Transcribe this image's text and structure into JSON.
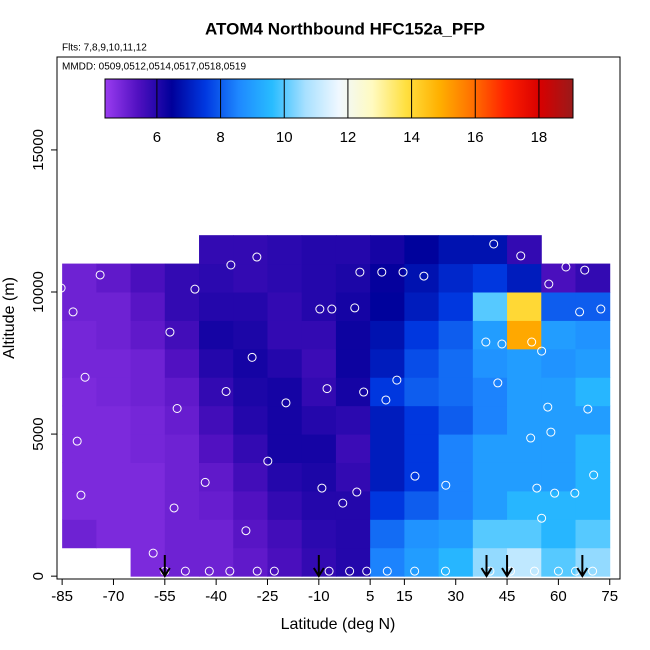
{
  "chart_data": {
    "type": "heatmap",
    "title": "ATOM4 Northbound HFC152a_PFP",
    "subtitle": [
      "Flts: 7,8,9,10,11,12",
      "MMDD: 0509,0512,0514,0517,0518,0519"
    ],
    "xlabel": "Latitude (deg N)",
    "ylabel": "Altitude (m)",
    "xlim": [
      -86.5,
      78
    ],
    "ylim": [
      -100,
      18270
    ],
    "xticks": [
      -85,
      -70,
      -55,
      -40,
      -25,
      -10,
      5,
      15,
      30,
      45,
      60,
      75
    ],
    "yticks": [
      0,
      5000,
      10000,
      15000
    ],
    "clim": [
      4.37,
      19.07
    ],
    "cticks": [
      6,
      8,
      10,
      12,
      14,
      16,
      18
    ],
    "colormap": [
      "#9a3cf0",
      "#5010c0",
      "#00009a",
      "#0038e0",
      "#1e88ff",
      "#28bcff",
      "#a8e0ff",
      "#f0f8ff",
      "#fffac0",
      "#ffe040",
      "#ffb000",
      "#ff7000",
      "#ff2000",
      "#d80000",
      "#9a1a1a"
    ],
    "lat_edges": [
      -85,
      -75,
      -65,
      -55,
      -45,
      -35,
      -25,
      -15,
      -5,
      5,
      15,
      25,
      35,
      45,
      55,
      65,
      75
    ],
    "alt_edges": [
      0,
      1000,
      2000,
      3000,
      4000,
      5000,
      6000,
      7000,
      8000,
      9000,
      10000,
      11000,
      12000
    ],
    "grid_values": [
      [
        null,
        5,
        4.8,
        4.8,
        4.8,
        4.8,
        4.8,
        4.9,
        4.9,
        5,
        5,
        null
      ],
      [
        null,
        4.8,
        4.8,
        4.8,
        4.8,
        4.8,
        4.9,
        4.9,
        5,
        5,
        5.2,
        null
      ],
      [
        4.8,
        4.8,
        4.8,
        4.8,
        4.9,
        4.9,
        5,
        5,
        5.2,
        5.3,
        5.5,
        null
      ],
      [
        5,
        5,
        5,
        5,
        5,
        5.1,
        5.2,
        5.4,
        5.6,
        5.8,
        5.8,
        null
      ],
      [
        5,
        5,
        5.1,
        5.2,
        5.4,
        5.6,
        5.8,
        6,
        6.2,
        6,
        5.9,
        5.8
      ],
      [
        5.2,
        5.3,
        5.4,
        5.6,
        5.8,
        6,
        6.1,
        6.2,
        6.1,
        6,
        5.8,
        5.8
      ],
      [
        5.5,
        5.6,
        5.8,
        6,
        6.2,
        6.2,
        6.2,
        6,
        5.8,
        5.8,
        5.9,
        5.9
      ],
      [
        5.8,
        5.9,
        6,
        6.1,
        6.2,
        6,
        5.8,
        5.7,
        5.8,
        6,
        6,
        6
      ],
      [
        6,
        6,
        6,
        5.8,
        5.7,
        5.9,
        6.2,
        6.3,
        6.3,
        6.2,
        6.1,
        6
      ],
      [
        8.5,
        8.2,
        7.5,
        7,
        7,
        7,
        7.5,
        7,
        6.8,
        6.5,
        6.4,
        6.2
      ],
      [
        9,
        8.8,
        8,
        7.5,
        7.5,
        7.5,
        8,
        7.8,
        7.5,
        7,
        6.8,
        6.5
      ],
      [
        9.5,
        9,
        8.5,
        8.5,
        8.5,
        8,
        8.2,
        8.2,
        8,
        7.5,
        7.2,
        6.8
      ],
      [
        10.5,
        10,
        9,
        9,
        9,
        8.5,
        8.5,
        8.8,
        9,
        10,
        7.5,
        6.8
      ],
      [
        11,
        10,
        9.5,
        9,
        9,
        9,
        9,
        9,
        15,
        14,
        7,
        5.8
      ],
      [
        10,
        9.5,
        9.5,
        9,
        9,
        9,
        9,
        8.8,
        9,
        8,
        5.5,
        null
      ],
      [
        10.5,
        10,
        9.5,
        9.5,
        9.5,
        9,
        9.5,
        9,
        8.8,
        8,
        5.8,
        null
      ]
    ],
    "samples": {
      "lat": [
        -85.3,
        -81.8,
        -73.9,
        -78.3,
        -80.6,
        -79.5,
        -58.4,
        -52.3,
        -53.5,
        -51.4,
        -46.2,
        -43.2,
        -35.7,
        -28.1,
        -29.5,
        -37.1,
        -24.9,
        -31.3,
        -19.6,
        -9.7,
        -6.2,
        -7.6,
        -9.1,
        -3,
        0.5,
        2,
        8.4,
        14.6,
        20.7,
        3.1,
        9.6,
        12.8,
        18.1,
        27.1,
        41.1,
        49,
        62.2,
        67.7,
        57.2,
        66.2,
        72.4,
        38.8,
        43.5,
        52.2,
        55.1,
        42.3,
        56.9,
        68.6,
        51.9,
        57.8,
        70.3,
        53.7,
        58.9,
        64.8,
        55.1,
        1.1,
        -55,
        -49,
        -42,
        -36,
        -28,
        -23,
        -7,
        -1,
        4,
        10,
        18,
        27,
        40,
        46,
        53,
        60,
        65,
        70
      ],
      "alt": [
        10140,
        9300,
        10600,
        7000,
        4750,
        2850,
        810,
        2400,
        8590,
        5900,
        10100,
        3300,
        10950,
        11230,
        7700,
        6500,
        4050,
        1600,
        6100,
        9400,
        9400,
        6600,
        3100,
        2570,
        9440,
        10700,
        10700,
        10700,
        10560,
        6480,
        6200,
        6900,
        3520,
        3200,
        11690,
        11270,
        10880,
        10770,
        10280,
        9300,
        9400,
        8240,
        8170,
        8240,
        7920,
        6800,
        5950,
        5880,
        4860,
        5070,
        3560,
        3100,
        2920,
        2920,
        2040,
        2960,
        176,
        176,
        176,
        176,
        176,
        176,
        176,
        176,
        176,
        176,
        176,
        176,
        176,
        176,
        176,
        176,
        176,
        176
      ]
    },
    "arrows": [
      -55,
      -10,
      39,
      45,
      67
    ]
  }
}
